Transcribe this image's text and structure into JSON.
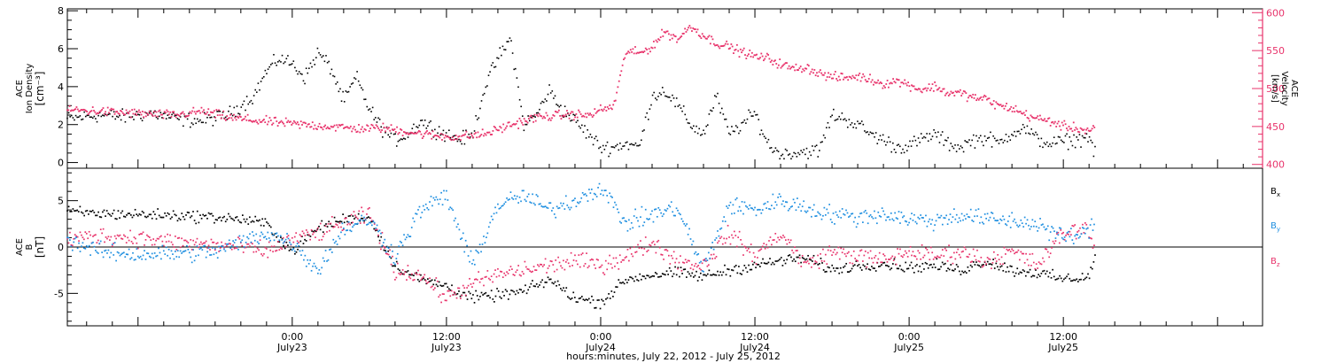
{
  "chart_data": [
    {
      "type": "scatter",
      "panel": "top",
      "ylabel_left": [
        "ACE",
        "Ion Density",
        "[cm⁻³]"
      ],
      "ylabel_right": [
        "ACE",
        "Velocity",
        "[km/s]"
      ],
      "y_left_lim": [
        -0.3,
        8.1
      ],
      "y_left_ticks": [
        0,
        2,
        4,
        6,
        8
      ],
      "y_right_lim": [
        395,
        605
      ],
      "y_right_ticks": [
        400,
        450,
        500,
        550,
        600
      ],
      "x_lim_hours": [
        -17.5,
        75.5
      ],
      "data_end_hour": 62.5,
      "series": [
        {
          "name": "Ion Density",
          "axis": "left",
          "color": "#000000",
          "x": [
            -17.5,
            -15,
            -13,
            -11,
            -9,
            -7,
            -5,
            -3,
            -2,
            -1,
            0,
            1,
            2,
            3,
            4,
            5,
            6,
            7,
            8,
            9,
            10,
            11,
            12,
            13,
            14,
            15,
            16,
            17,
            18,
            19,
            20,
            21,
            22,
            23,
            24,
            25,
            26,
            27,
            28,
            29,
            30,
            31,
            32,
            33,
            34,
            35,
            36,
            37,
            38,
            39,
            40,
            41,
            42,
            43,
            44,
            45,
            46,
            47,
            48,
            49,
            50,
            51,
            52,
            53,
            54,
            55,
            56,
            57,
            58,
            59,
            60,
            61,
            62,
            62.5
          ],
          "y": [
            2.3,
            2.5,
            2.4,
            2.6,
            2.3,
            2.2,
            2.5,
            3.5,
            4.8,
            5.5,
            5.2,
            4.5,
            5.8,
            5.0,
            3.2,
            4.5,
            2.8,
            1.8,
            1.2,
            1.5,
            2.2,
            1.8,
            1.5,
            1.2,
            1.4,
            4.0,
            5.5,
            6.5,
            2.0,
            2.5,
            3.8,
            2.8,
            2.2,
            1.5,
            0.8,
            0.8,
            1.0,
            0.8,
            3.5,
            3.8,
            3.0,
            2.0,
            1.5,
            3.5,
            1.5,
            2.0,
            2.6,
            1.0,
            0.4,
            0.5,
            0.6,
            0.6,
            2.5,
            2.3,
            2.0,
            1.5,
            1.2,
            0.8,
            0.9,
            1.2,
            1.5,
            1.0,
            0.8,
            1.2,
            1.3,
            1.0,
            1.6,
            1.8,
            1.2,
            1.0,
            1.1,
            1.2,
            1.4,
            0.3
          ]
        },
        {
          "name": "Velocity",
          "axis": "right",
          "color": "#e8336b",
          "x": [
            -17.5,
            -15,
            -13,
            -11,
            -9,
            -7,
            -5,
            -3,
            -1,
            1,
            3,
            5,
            7,
            9,
            11,
            13,
            15,
            17,
            19,
            21,
            22,
            23,
            24,
            25,
            26,
            27,
            28,
            29,
            30,
            31,
            32,
            33,
            34,
            35,
            36,
            37,
            38,
            39,
            40,
            41,
            42,
            43,
            44,
            45,
            46,
            47,
            48,
            49,
            50,
            51,
            52,
            53,
            54,
            55,
            56,
            57,
            58,
            59,
            60,
            61,
            62,
            62.5
          ],
          "y": [
            472,
            470,
            468,
            466,
            465,
            470,
            462,
            458,
            455,
            452,
            450,
            447,
            448,
            443,
            438,
            436,
            440,
            452,
            462,
            465,
            466,
            464,
            472,
            476,
            550,
            546,
            555,
            575,
            565,
            582,
            570,
            560,
            555,
            548,
            542,
            540,
            532,
            526,
            528,
            520,
            515,
            514,
            516,
            512,
            506,
            510,
            505,
            498,
            503,
            494,
            494,
            488,
            486,
            477,
            474,
            466,
            460,
            457,
            450,
            448,
            444,
            451
          ]
        }
      ]
    },
    {
      "type": "scatter",
      "panel": "bottom",
      "ylabel_left": [
        "ACE",
        "B",
        "[nT]"
      ],
      "y_lim": [
        -8.5,
        8.5
      ],
      "y_ticks": [
        -5,
        0,
        5
      ],
      "zero_line": true,
      "x_lim_hours": [
        -17.5,
        75.5
      ],
      "data_end_hour": 62.5,
      "series": [
        {
          "name": "Bx",
          "color": "#000000",
          "x": [
            -17.5,
            -15,
            -12,
            -9,
            -6,
            -4,
            -2,
            0,
            2,
            4,
            6,
            8,
            10,
            12,
            14,
            16,
            18,
            20,
            22,
            24,
            26,
            28,
            30,
            32,
            34,
            36,
            38,
            40,
            42,
            44,
            46,
            48,
            50,
            52,
            54,
            56,
            58,
            60,
            62,
            62.5
          ],
          "y": [
            3.8,
            3.6,
            3.5,
            3.4,
            3.2,
            3.0,
            2.5,
            -0.5,
            2.0,
            3.0,
            3.2,
            -2.0,
            -3.5,
            -4.2,
            -5.5,
            -5.2,
            -4.8,
            -3.5,
            -5.5,
            -6.0,
            -3.5,
            -3.0,
            -2.8,
            -3.2,
            -2.5,
            -2.0,
            -1.5,
            -1.2,
            -2.5,
            -2.0,
            -1.8,
            -2.2,
            -2.0,
            -2.5,
            -1.5,
            -2.5,
            -2.8,
            -3.5,
            -3.2,
            -1.0
          ]
        },
        {
          "name": "By",
          "color": "#1f8fe0",
          "x": [
            -17.5,
            -15,
            -12,
            -9,
            -6,
            -4,
            -2,
            0,
            2,
            4,
            6,
            8,
            10,
            12,
            14,
            16,
            18,
            20,
            22,
            24,
            26,
            28,
            30,
            32,
            34,
            36,
            38,
            40,
            42,
            44,
            46,
            48,
            50,
            52,
            54,
            56,
            58,
            60,
            62,
            62.5
          ],
          "y": [
            0.8,
            -0.5,
            -0.8,
            -0.7,
            -0.5,
            0.5,
            1.5,
            0.5,
            -2.5,
            2.0,
            3.0,
            -1.0,
            4.0,
            5.5,
            -2.0,
            4.5,
            5.5,
            4.0,
            5.0,
            6.5,
            2.5,
            3.5,
            4.2,
            -2.5,
            4.5,
            4.0,
            5.0,
            4.2,
            3.5,
            3.2,
            3.6,
            3.0,
            2.8,
            3.5,
            3.0,
            2.8,
            2.5,
            1.0,
            1.5,
            3.8
          ]
        },
        {
          "name": "Bz",
          "color": "#e8336b",
          "x": [
            -17.5,
            -15,
            -12,
            -9,
            -6,
            -4,
            -2,
            0,
            2,
            4,
            6,
            8,
            10,
            12,
            14,
            16,
            18,
            20,
            22,
            24,
            26,
            28,
            30,
            32,
            34,
            36,
            38,
            40,
            42,
            44,
            46,
            48,
            50,
            52,
            54,
            56,
            58,
            60,
            62,
            62.5
          ],
          "y": [
            0.8,
            1.2,
            1.0,
            0.5,
            0.2,
            0.0,
            -0.5,
            0.8,
            1.5,
            2.5,
            3.5,
            -2.5,
            -3.0,
            -5.5,
            -4.0,
            -3.0,
            -2.5,
            -2.0,
            -1.5,
            -2.0,
            -1.0,
            0.5,
            -1.5,
            -2.0,
            1.5,
            -1.0,
            1.5,
            -2.0,
            -0.5,
            -1.0,
            -1.5,
            -0.5,
            -1.0,
            -0.5,
            -1.5,
            -0.5,
            -2.0,
            1.5,
            2.0,
            -0.5
          ]
        }
      ],
      "legend": [
        "Bx",
        "By",
        "Bz"
      ]
    }
  ],
  "x_axis": {
    "ticks": [
      {
        "hour": 0,
        "time": "0:00",
        "date": "July23"
      },
      {
        "hour": 12,
        "time": "12:00",
        "date": "July23"
      },
      {
        "hour": 24,
        "time": "0:00",
        "date": "July24"
      },
      {
        "hour": 36,
        "time": "12:00",
        "date": "July24"
      },
      {
        "hour": 48,
        "time": "0:00",
        "date": "July25"
      },
      {
        "hour": 60,
        "time": "12:00",
        "date": "July25"
      }
    ],
    "label": "hours:minutes, July 22, 2012 - July 25, 2012"
  },
  "legend_labels": {
    "bx": {
      "main": "B",
      "sub": "x",
      "color": "#000000"
    },
    "by": {
      "main": "B",
      "sub": "y",
      "color": "#1f8fe0"
    },
    "bz": {
      "main": "B",
      "sub": "z",
      "color": "#e8336b"
    }
  }
}
